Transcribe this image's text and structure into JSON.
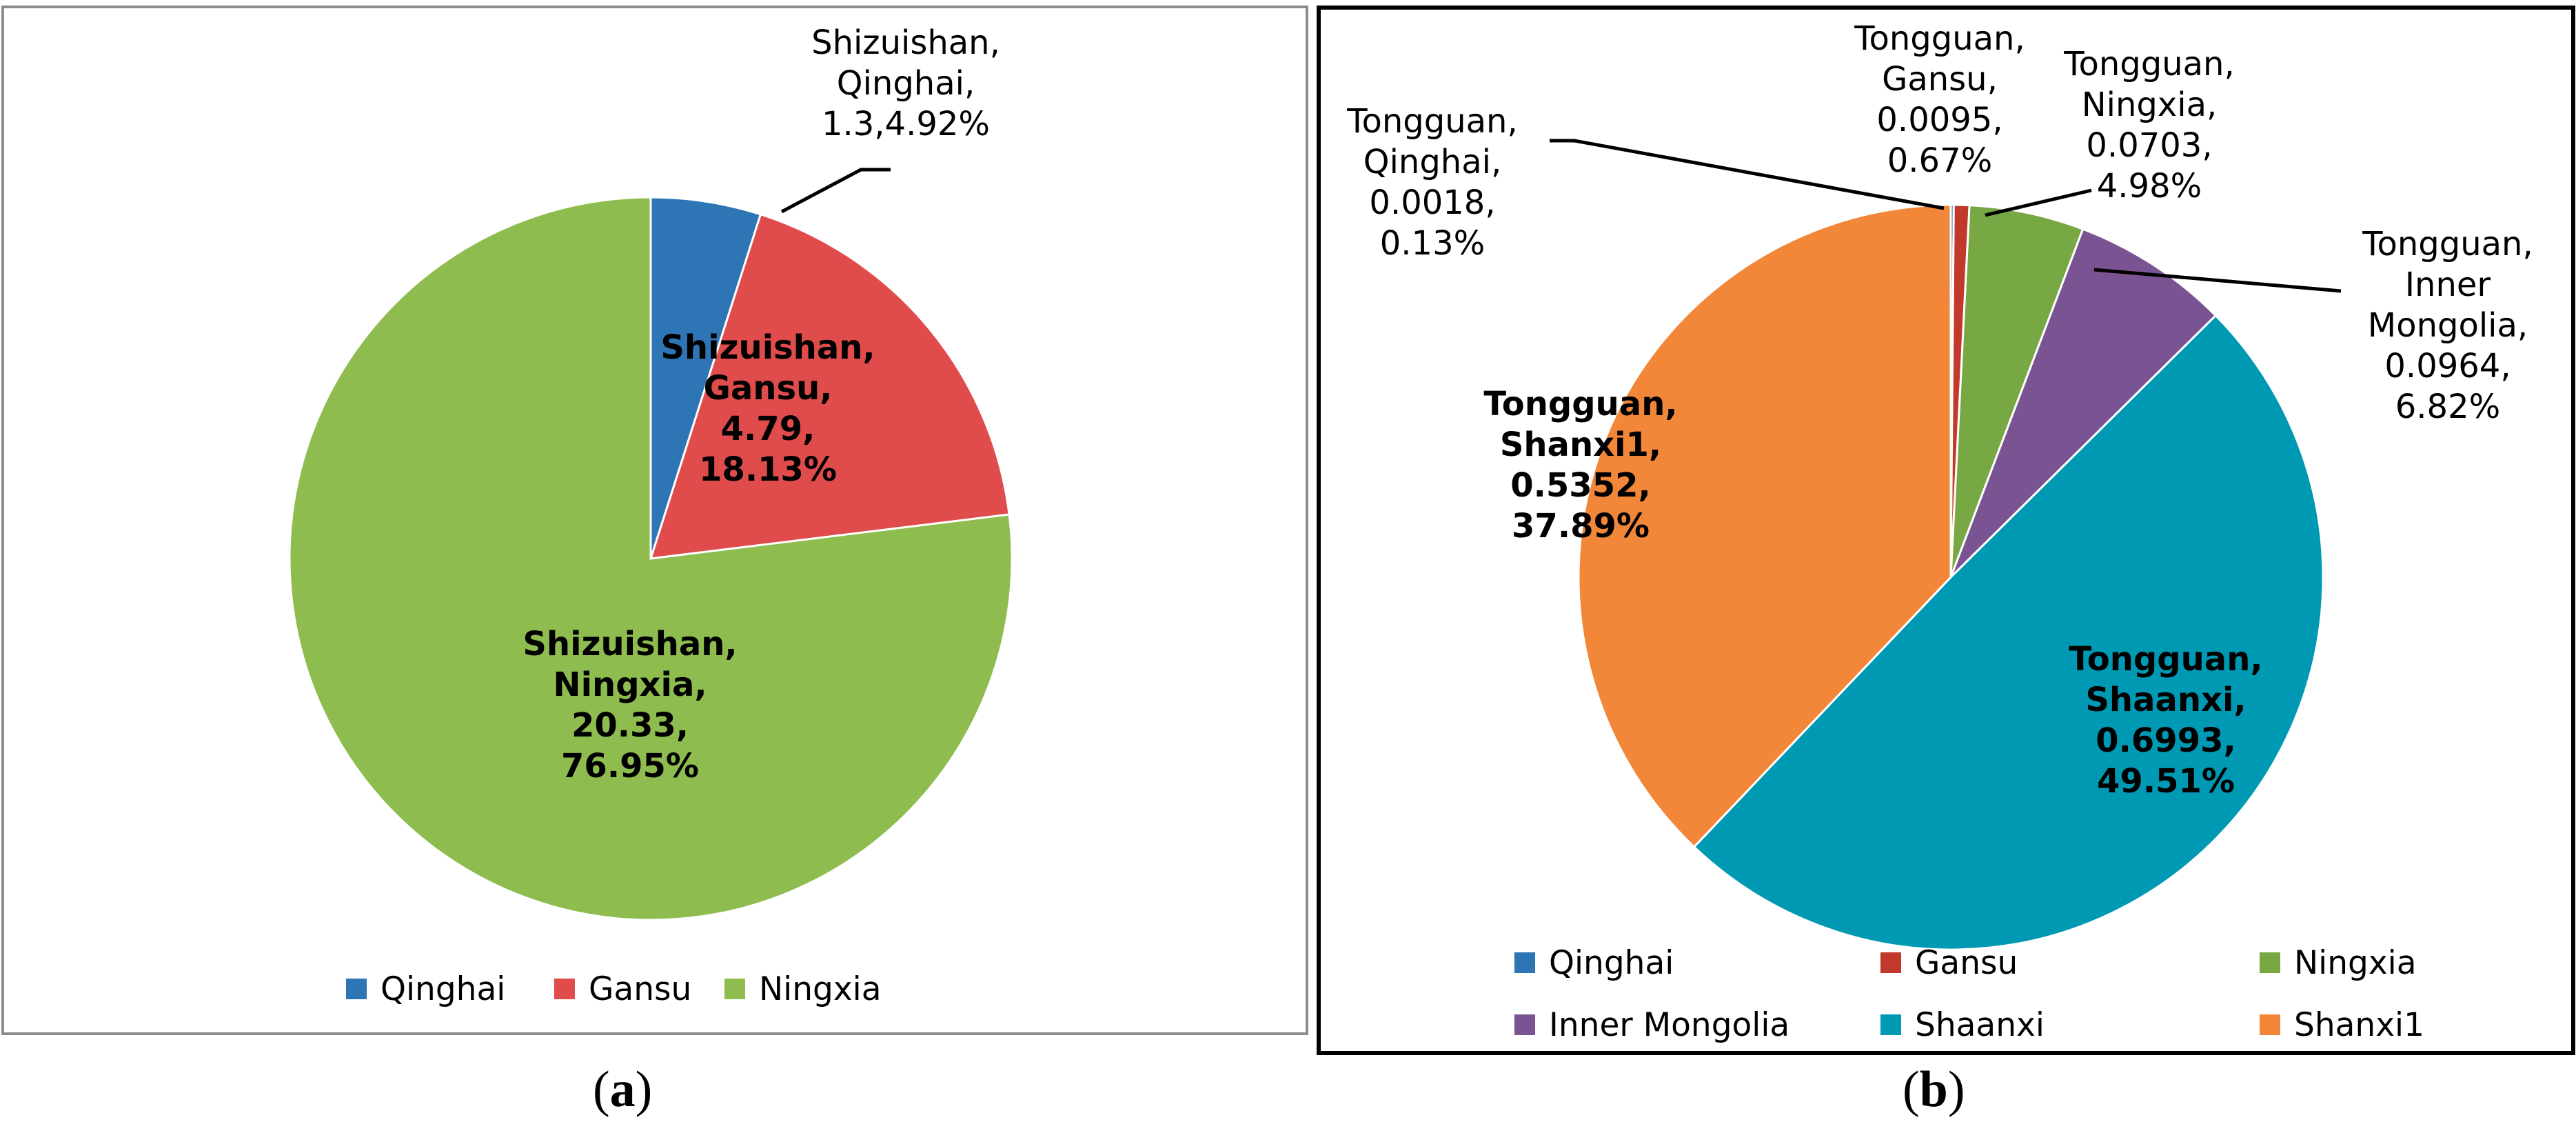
{
  "chart_data": [
    {
      "type": "pie",
      "panel": "a",
      "caption_letter": "a",
      "legend_position": "bottom",
      "slices": [
        {
          "name": "Qinghai",
          "value": 1.3,
          "percent": "4.92%",
          "color": "#2e75b6",
          "label_lines": [
            "Shizuishan,",
            "Qinghai,",
            "1.3,4.92%"
          ]
        },
        {
          "name": "Gansu",
          "value": 4.79,
          "percent": "18.13%",
          "color": "#e04b4b",
          "label_lines": [
            "Shizuishan,",
            "Gansu,",
            "4.79,",
            "18.13%"
          ]
        },
        {
          "name": "Ningxia",
          "value": 20.33,
          "percent": "76.95%",
          "color": "#8fbc4f",
          "label_lines": [
            "Shizuishan,",
            "Ningxia,",
            "20.33,",
            "76.95%"
          ]
        }
      ]
    },
    {
      "type": "pie",
      "panel": "b",
      "caption_letter": "b",
      "legend_position": "bottom",
      "slices": [
        {
          "name": "Qinghai",
          "value": 0.0018,
          "percent": "0.13%",
          "color": "#2e75b6",
          "label_lines": [
            "Tongguan,",
            "Qinghai,",
            "0.0018,",
            "0.13%"
          ]
        },
        {
          "name": "Gansu",
          "value": 0.0095,
          "percent": "0.67%",
          "color": "#c0392b",
          "label_lines": [
            "Tongguan,",
            "Gansu,",
            "0.0095,",
            "0.67%"
          ]
        },
        {
          "name": "Ningxia",
          "value": 0.0703,
          "percent": "4.98%",
          "color": "#77a843",
          "label_lines": [
            "Tongguan,",
            "Ningxia,",
            "0.0703,",
            "4.98%"
          ]
        },
        {
          "name": "Inner Mongolia",
          "value": 0.0964,
          "percent": "6.82%",
          "color": "#7a5492",
          "label_lines": [
            "Tongguan,",
            "Inner",
            "Mongolia,",
            "0.0964,",
            "6.82%"
          ]
        },
        {
          "name": "Shaanxi",
          "value": 0.6993,
          "percent": "49.51%",
          "color": "#0099b3",
          "label_lines": [
            "Tongguan,",
            "Shaanxi,",
            "0.6993,",
            "49.51%"
          ]
        },
        {
          "name": "Shanxi1",
          "value": 0.5352,
          "percent": "37.89%",
          "color": "#f2873a",
          "label_lines": [
            "Tongguan,",
            "Shanxi1,",
            "0.5352,",
            "37.89%"
          ]
        }
      ]
    }
  ]
}
